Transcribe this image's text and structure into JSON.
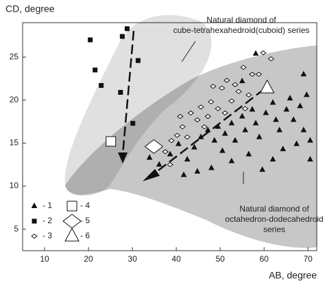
{
  "chart_data": {
    "type": "scatter",
    "xlabel": "AB, degree",
    "ylabel": "CD, degree",
    "xlim": [
      5,
      72
    ],
    "ylim": [
      2.5,
      29
    ],
    "xticks": [
      10,
      20,
      30,
      40,
      50,
      60,
      70
    ],
    "yticks": [
      5,
      10,
      15,
      20,
      25
    ],
    "annotations": [
      {
        "lines": [
          "Natural diamond of",
          "cube-tetrahexahedroid(cuboid) series"
        ]
      },
      {
        "lines": [
          "Natural diamond of",
          "octahedron-dodecahedroid",
          "series"
        ]
      }
    ],
    "series": [
      {
        "name": "- 1",
        "marker": "triangle",
        "color": "#111111",
        "size": 3.5,
        "x": [
          36.1,
          38.6,
          40.5,
          42.5,
          44.1,
          45.6,
          47.2,
          48.7,
          49.5,
          51.1,
          52.6,
          53.4,
          55,
          55.7,
          57.3,
          58.1,
          58.9,
          60.4,
          62,
          62.7,
          63.5,
          65.1,
          65.9,
          66.7,
          68.2,
          69,
          69.7,
          70.5,
          64.3,
          62,
          59.6,
          56.5,
          52.6,
          48,
          44.8,
          41.7,
          33.9,
          50.5,
          58.1,
          55,
          69,
          70.5,
          67.4
        ],
        "values": [
          12.5,
          13.7,
          14.9,
          13.1,
          14.5,
          15.7,
          16.5,
          15.3,
          16.9,
          16.1,
          17.3,
          15.3,
          18.1,
          16.5,
          18.9,
          17.3,
          15.7,
          18.5,
          19.7,
          17.7,
          16.5,
          18.9,
          20.2,
          17.7,
          19.3,
          16.5,
          20.6,
          15.3,
          14.3,
          13.1,
          11.9,
          13.7,
          12.9,
          12.1,
          11.7,
          11.3,
          13.3,
          14.1,
          25.4,
          22.2,
          23,
          13.1,
          14.9
        ]
      },
      {
        "name": "- 2",
        "marker": "square",
        "color": "#111111",
        "size": 3,
        "x": [
          20.4,
          28.8,
          27.7,
          21.5,
          22.9,
          27.3,
          31.3,
          30.1
        ],
        "values": [
          27,
          28.3,
          27.4,
          23.5,
          21.7,
          20.9,
          24.6,
          17.3
        ]
      },
      {
        "name": "- 3",
        "marker": "diamond",
        "color": "#ffffff",
        "size": 3,
        "x": [
          59.8,
          61.6,
          55.3,
          57.3,
          51.5,
          50.4,
          48.4,
          54.2,
          52.6,
          47.9,
          45.6,
          43.3,
          40.9,
          41.4,
          44.8,
          46.4,
          40.2,
          38.9,
          37.5,
          38.6,
          42.5,
          49.5,
          53.4,
          58.8,
          56.5,
          51.1,
          55.7,
          47.2
        ],
        "values": [
          25.5,
          24.8,
          23.8,
          23,
          22.3,
          21.4,
          21.6,
          21,
          19.9,
          19.8,
          19.2,
          18.5,
          18.1,
          16.9,
          17.7,
          16.9,
          15.9,
          15.3,
          14,
          12.5,
          15.7,
          19,
          21.8,
          23,
          20.6,
          18.5,
          19,
          18.1
        ]
      },
      {
        "name": "- 4",
        "marker": "square",
        "color": "#ffffff",
        "size": 7,
        "x": [
          25.1
        ],
        "values": [
          15.2
        ]
      },
      {
        "name": "- 5",
        "marker": "diamond",
        "color": "#ffffff",
        "size": 10,
        "x": [
          34.9
        ],
        "values": [
          14.6
        ]
      },
      {
        "name": "- 6",
        "marker": "triangle",
        "color": "#ffffff",
        "size": 10,
        "x": [
          60.7
        ],
        "values": [
          21.4
        ]
      }
    ]
  }
}
